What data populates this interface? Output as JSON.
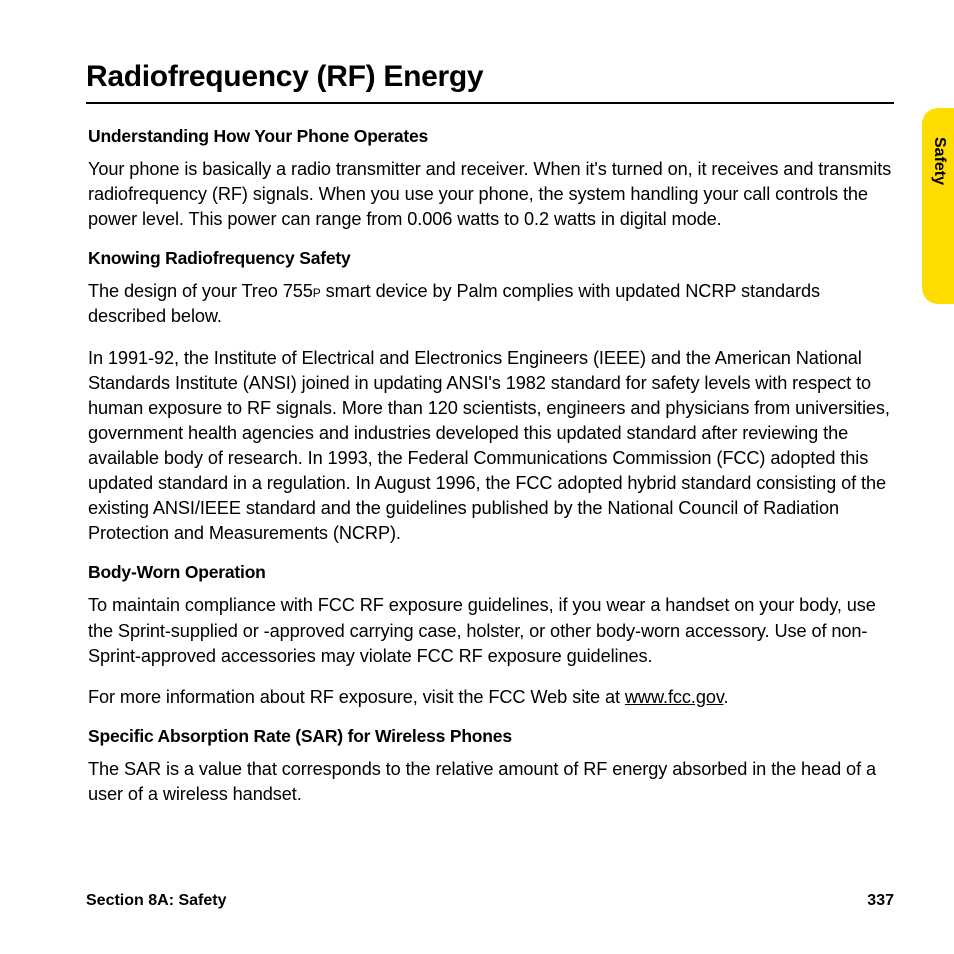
{
  "title": "Radiofrequency (RF) Energy",
  "tab": {
    "label": "Safety",
    "bg_color": "#ffdd00"
  },
  "sections": {
    "s1": {
      "heading": "Understanding How Your Phone Operates",
      "p1": "Your phone is basically a radio transmitter and receiver. When it's turned on, it receives and transmits radiofrequency (RF) signals. When you use your phone, the system handling your call controls the power level. This power can range from 0.006 watts to 0.2 watts in digital mode."
    },
    "s2": {
      "heading": "Knowing Radiofrequency Safety",
      "p1_a": "The design of your Treo 755",
      "p1_sub": "P",
      "p1_b": " smart device by Palm complies with updated NCRP standards described below.",
      "p2": "In 1991-92, the Institute of Electrical and Electronics Engineers (IEEE) and the American National Standards Institute (ANSI) joined in updating ANSI's 1982 standard for safety levels with respect to human exposure to RF signals. More than 120 scientists, engineers and physicians from universities, government health agencies and industries developed this updated standard after reviewing the available body of research. In 1993, the Federal Communications Commission (FCC) adopted this updated standard in a regulation. In August 1996, the FCC adopted hybrid standard consisting of the existing ANSI/IEEE standard and the guidelines published by the National Council of Radiation Protection and Measurements (NCRP)."
    },
    "s3": {
      "heading": "Body-Worn Operation",
      "p1": "To maintain compliance with FCC RF exposure guidelines, if you wear a handset on your body, use the Sprint-supplied or -approved carrying case, holster, or other body-worn accessory. Use of non-Sprint-approved accessories may violate FCC RF exposure guidelines.",
      "p2_a": "For more information about RF exposure, visit the FCC Web site at ",
      "p2_link": "www.fcc.gov",
      "p2_b": "."
    },
    "s4": {
      "heading": "Specific Absorption Rate (SAR) for Wireless Phones",
      "p1": "The SAR is a value that corresponds to the relative amount of RF energy absorbed in the head of a user of a wireless handset."
    }
  },
  "footer": {
    "section": "Section 8A: Safety",
    "page": "337"
  }
}
